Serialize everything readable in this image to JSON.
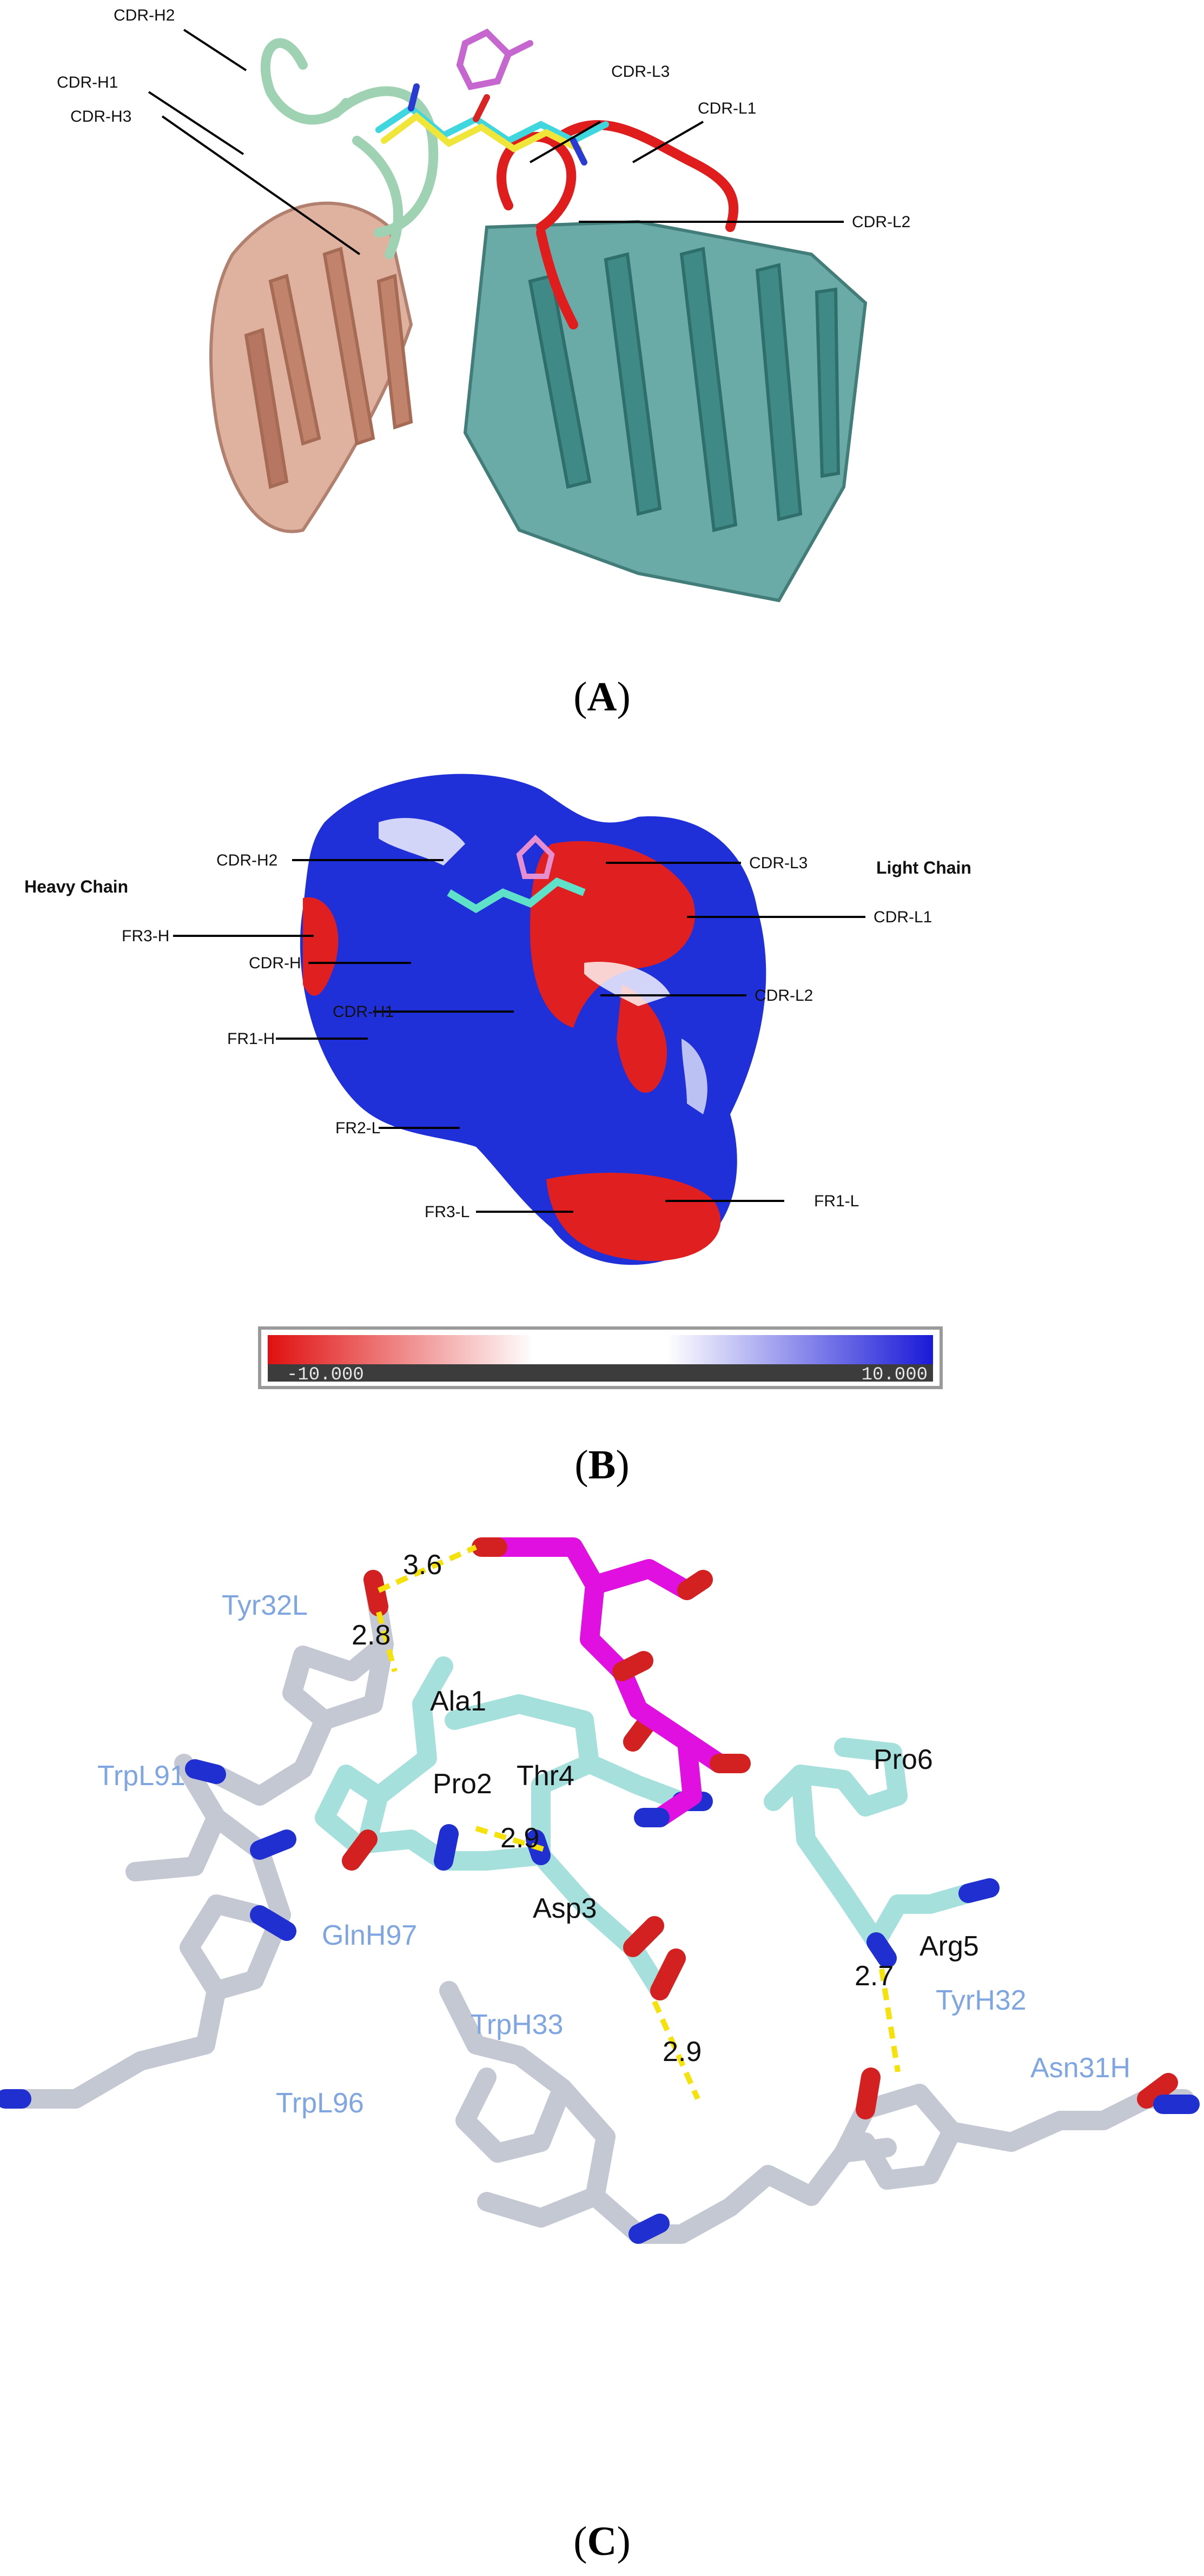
{
  "panelA": {
    "caption": "A",
    "labels": {
      "cdr_h2": "CDR-H2",
      "cdr_h1": "CDR-H1",
      "cdr_h3": "CDR-H3",
      "cdr_l3": "CDR-L3",
      "cdr_l1": "CDR-L1",
      "cdr_l2": "CDR-L2"
    }
  },
  "panelB": {
    "caption": "B",
    "chain_labels": {
      "heavy": "Heavy Chain",
      "light": "Light Chain"
    },
    "labels": {
      "cdr_h2": "CDR-H2",
      "cdr_l3": "CDR-L3",
      "cdr_l1": "CDR-L1",
      "fr3_h": "FR3-H",
      "cdr_h": "CDR-H",
      "cdr_h1": "CDR-H1",
      "cdr_l2": "CDR-L2",
      "fr1_h": "FR1-H",
      "fr2_l": "FR2-L",
      "fr3_l": "FR3-L",
      "fr1_l": "FR1-L"
    },
    "colorbar": {
      "min_label": "-10.000",
      "max_label": "10.000",
      "min_color": "#e01010",
      "mid_color": "#ffffff",
      "max_color": "#1a1ad8"
    }
  },
  "panelC": {
    "caption": "C",
    "residues": {
      "tyr32l": "Tyr32L",
      "trpl91": "TrpL91",
      "glnh97": "GlnH97",
      "trph33": "TrpH33",
      "trpl96": "TrpL96",
      "tyrh32": "TyrH32",
      "asn31h": "Asn31H"
    },
    "peptide": {
      "ala1": "Ala1",
      "pro2": "Pro2",
      "asp3": "Asp3",
      "thr4": "Thr4",
      "arg5": "Arg5",
      "pro6": "Pro6"
    },
    "distances": {
      "d1": "3.6",
      "d2": "2.8",
      "d3": "2.9",
      "d4": "2.9",
      "d5": "2.7"
    }
  }
}
